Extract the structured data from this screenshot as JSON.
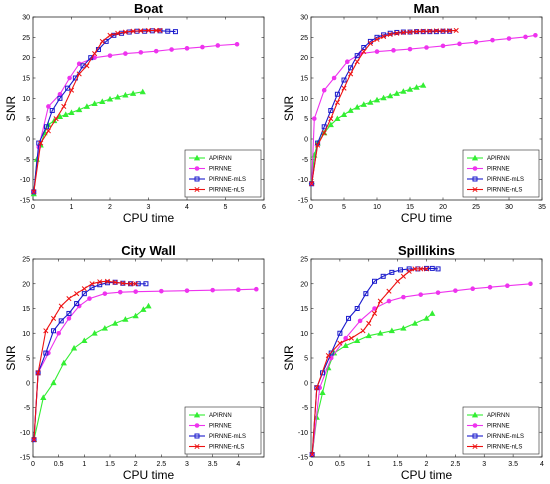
{
  "figure": {
    "xlabel": "CPU time",
    "ylabel": "SNR"
  },
  "styles": {
    "APIRNN": {
      "color": "#33ee33",
      "marker": "triangle"
    },
    "PIRNNE": {
      "color": "#ee33ee",
      "marker": "circle"
    },
    "PIRNNE-mLS": {
      "color": "#1a1acc",
      "marker": "square"
    },
    "PIRNNE-nLS": {
      "color": "#ee1111",
      "marker": "x"
    }
  },
  "chart_data": [
    {
      "type": "line",
      "title": "Boat",
      "xlabel": "CPU time",
      "ylabel": "SNR",
      "xlim": [
        0,
        6
      ],
      "ylim": [
        -15,
        30
      ],
      "xticks": [
        0,
        1,
        2,
        3,
        4,
        5,
        6
      ],
      "yticks": [
        -15,
        -10,
        -5,
        0,
        5,
        10,
        15,
        20,
        25,
        30
      ],
      "legend_position": "bottom-right",
      "series": [
        {
          "name": "APIRNN",
          "x": [
            0.02,
            0.1,
            0.2,
            0.3,
            0.4,
            0.55,
            0.7,
            0.85,
            1.0,
            1.2,
            1.4,
            1.6,
            1.8,
            2.0,
            2.2,
            2.4,
            2.6,
            2.85
          ],
          "y": [
            -13.5,
            -5,
            -1.5,
            1.5,
            3.5,
            4.5,
            5.5,
            6,
            6.5,
            7.2,
            8,
            8.7,
            9.2,
            9.8,
            10.3,
            10.8,
            11.2,
            11.6
          ]
        },
        {
          "name": "PIRNNE",
          "x": [
            0.02,
            0.15,
            0.4,
            0.7,
            0.95,
            1.2,
            1.6,
            2.0,
            2.4,
            2.8,
            3.2,
            3.6,
            4.0,
            4.4,
            4.8,
            5.3
          ],
          "y": [
            -13,
            -2,
            8,
            11,
            15,
            18.5,
            20,
            20.5,
            21,
            21.3,
            21.6,
            22,
            22.3,
            22.6,
            23,
            23.3
          ]
        },
        {
          "name": "PIRNNE-mLS",
          "x": [
            0.02,
            0.15,
            0.35,
            0.5,
            0.7,
            0.9,
            1.1,
            1.3,
            1.5,
            1.7,
            1.9,
            2.1,
            2.3,
            2.5,
            2.7,
            2.9,
            3.1,
            3.3,
            3.5,
            3.7
          ],
          "y": [
            -13,
            -1,
            3,
            7,
            10,
            12.5,
            15,
            18,
            20,
            22,
            24,
            25.5,
            26,
            26.3,
            26.5,
            26.5,
            26.6,
            26.6,
            26.5,
            26.4
          ]
        },
        {
          "name": "PIRNNE-nLS",
          "x": [
            0.02,
            0.2,
            0.4,
            0.6,
            0.8,
            1.0,
            1.2,
            1.4,
            1.6,
            1.8,
            2.0,
            2.2,
            2.4,
            2.6,
            2.8,
            3.0,
            3.2,
            3.3
          ],
          "y": [
            -13,
            -1,
            2,
            5,
            8,
            12,
            16,
            18,
            21,
            24,
            25.5,
            26,
            26.3,
            26.5,
            26.6,
            26.7,
            26.7,
            26.7
          ]
        }
      ]
    },
    {
      "type": "line",
      "title": "Man",
      "xlabel": "CPU time",
      "ylabel": "SNR",
      "xlim": [
        0,
        35
      ],
      "ylim": [
        -15,
        30
      ],
      "xticks": [
        0,
        5,
        10,
        15,
        20,
        25,
        30,
        35
      ],
      "yticks": [
        -15,
        -10,
        -5,
        0,
        5,
        10,
        15,
        20,
        25,
        30
      ],
      "legend_position": "bottom-right",
      "series": [
        {
          "name": "APIRNN",
          "x": [
            0.1,
            0.5,
            1.0,
            2.0,
            3.0,
            4.0,
            5.0,
            6.0,
            7.0,
            8.0,
            9.0,
            10.0,
            11.0,
            12.0,
            13.0,
            14.0,
            15.0,
            16.0,
            17.0
          ],
          "y": [
            -10.5,
            -4,
            -1,
            1.5,
            3.5,
            5,
            6,
            7,
            7.8,
            8.5,
            9,
            9.6,
            10.1,
            10.6,
            11.2,
            11.7,
            12.2,
            12.7,
            13.2
          ]
        },
        {
          "name": "PIRNNE",
          "x": [
            0.1,
            0.5,
            2.0,
            3.5,
            5.5,
            7.5,
            10.0,
            12.5,
            15.0,
            17.5,
            20.0,
            22.5,
            25.0,
            27.5,
            30.0,
            32.5,
            34.0
          ],
          "y": [
            -11,
            5,
            12,
            15,
            19,
            21,
            21.5,
            21.8,
            22.1,
            22.5,
            22.9,
            23.4,
            23.8,
            24.3,
            24.7,
            25.1,
            25.5
          ]
        },
        {
          "name": "PIRNNE-mLS",
          "x": [
            0.1,
            1.0,
            2.0,
            3.0,
            4.0,
            5.0,
            6.0,
            7.0,
            8.0,
            9.0,
            10.0,
            11.0,
            12.0,
            13.0,
            14.0,
            15.0,
            16.0,
            17.0,
            18.0,
            19.0,
            20.0,
            21.0
          ],
          "y": [
            -11,
            -1,
            3,
            7,
            11,
            14.5,
            17.5,
            20.5,
            22.5,
            24,
            25,
            25.6,
            26,
            26.2,
            26.3,
            26.3,
            26.4,
            26.4,
            26.4,
            26.4,
            26.5,
            26.5
          ]
        },
        {
          "name": "PIRNNE-nLS",
          "x": [
            0.1,
            1.0,
            2.0,
            3.0,
            4.0,
            5.0,
            6.0,
            7.0,
            8.0,
            9.0,
            10.0,
            11.0,
            12.0,
            13.0,
            14.0,
            15.0,
            16.0,
            17.0,
            18.0,
            19.0,
            20.0,
            21.0,
            22.0
          ],
          "y": [
            -11,
            -1.5,
            1.5,
            5,
            9,
            12.5,
            16,
            19,
            21.5,
            23.5,
            24.5,
            25.2,
            25.7,
            26,
            26.2,
            26.3,
            26.4,
            26.5,
            26.5,
            26.6,
            26.6,
            26.6,
            26.7
          ]
        }
      ]
    },
    {
      "type": "line",
      "title": "City Wall",
      "xlabel": "CPU time",
      "ylabel": "SNR",
      "xlim": [
        0,
        4.5
      ],
      "ylim": [
        -15,
        25
      ],
      "xticks": [
        0,
        0.5,
        1,
        1.5,
        2,
        2.5,
        3,
        3.5,
        4
      ],
      "yticks": [
        -15,
        -10,
        -5,
        0,
        5,
        10,
        15,
        20,
        25
      ],
      "legend_position": "bottom-right",
      "series": [
        {
          "name": "APIRNN",
          "x": [
            0.02,
            0.2,
            0.4,
            0.6,
            0.8,
            1.0,
            1.2,
            1.4,
            1.6,
            1.8,
            2.0,
            2.15,
            2.25
          ],
          "y": [
            -11.5,
            -3,
            0,
            4,
            7,
            8.5,
            10,
            11,
            12,
            12.8,
            13.5,
            14.8,
            15.5
          ]
        },
        {
          "name": "PIRNNE",
          "x": [
            0.02,
            0.1,
            0.3,
            0.5,
            0.7,
            0.9,
            1.1,
            1.4,
            1.7,
            2.0,
            2.5,
            3.0,
            3.5,
            4.0,
            4.35
          ],
          "y": [
            -11.5,
            2,
            6,
            10,
            13,
            15.5,
            17,
            18,
            18.3,
            18.4,
            18.5,
            18.6,
            18.7,
            18.8,
            18.9
          ]
        },
        {
          "name": "PIRNNE-mLS",
          "x": [
            0.02,
            0.1,
            0.25,
            0.4,
            0.55,
            0.7,
            0.85,
            1.0,
            1.15,
            1.3,
            1.45,
            1.6,
            1.75,
            1.9,
            2.05,
            2.2
          ],
          "y": [
            -11.5,
            2,
            6,
            10.5,
            12.5,
            14,
            16,
            18,
            19.2,
            19.8,
            20.2,
            20.3,
            20.1,
            20,
            20,
            20
          ]
        },
        {
          "name": "PIRNNE-nLS",
          "x": [
            0.02,
            0.1,
            0.25,
            0.4,
            0.55,
            0.7,
            0.85,
            1.0,
            1.15,
            1.3,
            1.45,
            1.6,
            1.75,
            1.9,
            2.0
          ],
          "y": [
            -11.5,
            2,
            10.5,
            13,
            15.5,
            17,
            18,
            19,
            20,
            20.4,
            20.5,
            20.3,
            20.1,
            20,
            20
          ]
        }
      ]
    },
    {
      "type": "line",
      "title": "Spillikins",
      "xlabel": "CPU time",
      "ylabel": "SNR",
      "xlim": [
        0,
        4
      ],
      "ylim": [
        -15,
        25
      ],
      "xticks": [
        0,
        0.5,
        1,
        1.5,
        2,
        2.5,
        3,
        3.5,
        4
      ],
      "yticks": [
        -15,
        -10,
        -5,
        0,
        5,
        10,
        15,
        20,
        25
      ],
      "legend_position": "bottom-right",
      "series": [
        {
          "name": "APIRNN",
          "x": [
            0.02,
            0.1,
            0.2,
            0.3,
            0.4,
            0.6,
            0.8,
            1.0,
            1.2,
            1.4,
            1.6,
            1.8,
            2.0,
            2.1
          ],
          "y": [
            -14.5,
            -7,
            -2,
            3,
            6,
            7.5,
            8.5,
            9.5,
            10,
            10.5,
            11,
            12,
            13,
            14
          ]
        },
        {
          "name": "PIRNNE",
          "x": [
            0.02,
            0.15,
            0.35,
            0.6,
            0.85,
            1.1,
            1.35,
            1.6,
            1.9,
            2.2,
            2.5,
            2.8,
            3.1,
            3.4,
            3.8
          ],
          "y": [
            -14.5,
            -1,
            5,
            9,
            12.5,
            15,
            16.5,
            17.3,
            17.8,
            18.2,
            18.6,
            19,
            19.3,
            19.6,
            20
          ]
        },
        {
          "name": "PIRNNE-mLS",
          "x": [
            0.02,
            0.1,
            0.2,
            0.35,
            0.5,
            0.65,
            0.8,
            0.95,
            1.1,
            1.25,
            1.4,
            1.55,
            1.7,
            1.85,
            2.0,
            2.1,
            2.2
          ],
          "y": [
            -14.5,
            -1,
            2,
            6,
            10,
            13,
            15,
            18,
            20.5,
            21.5,
            22.3,
            22.8,
            23,
            23,
            23.1,
            23.1,
            23
          ]
        },
        {
          "name": "PIRNNE-nLS",
          "x": [
            0.02,
            0.1,
            0.3,
            0.5,
            0.7,
            0.9,
            1.0,
            1.1,
            1.2,
            1.35,
            1.5,
            1.6,
            1.7,
            1.8,
            1.9,
            2.0
          ],
          "y": [
            -14.5,
            -1,
            5.5,
            8,
            9,
            10.5,
            12,
            14,
            16.5,
            18.5,
            20.5,
            21.5,
            22.5,
            23,
            23,
            23
          ]
        }
      ]
    }
  ]
}
